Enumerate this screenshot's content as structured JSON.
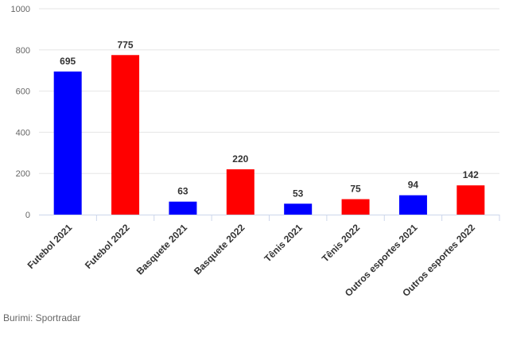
{
  "chart_data": {
    "type": "bar",
    "categories": [
      "Futebol 2021",
      "Futebol 2022",
      "Basquete 2021",
      "Basquete 2022",
      "Tênis 2021",
      "Tênis 2022",
      "Outros esportes 2021",
      "Outros esportes 2022"
    ],
    "values": [
      695,
      775,
      63,
      220,
      53,
      75,
      94,
      142
    ],
    "colors": [
      "#0000ff",
      "#ff0000",
      "#0000ff",
      "#ff0000",
      "#0000ff",
      "#ff0000",
      "#0000ff",
      "#ff0000"
    ],
    "yticks": [
      0,
      200,
      400,
      600,
      800,
      1000
    ],
    "ylim": [
      0,
      1000
    ],
    "grid": true,
    "legend": false,
    "title": "",
    "xlabel": "",
    "ylabel": ""
  },
  "source": "Burimi: Sportradar"
}
